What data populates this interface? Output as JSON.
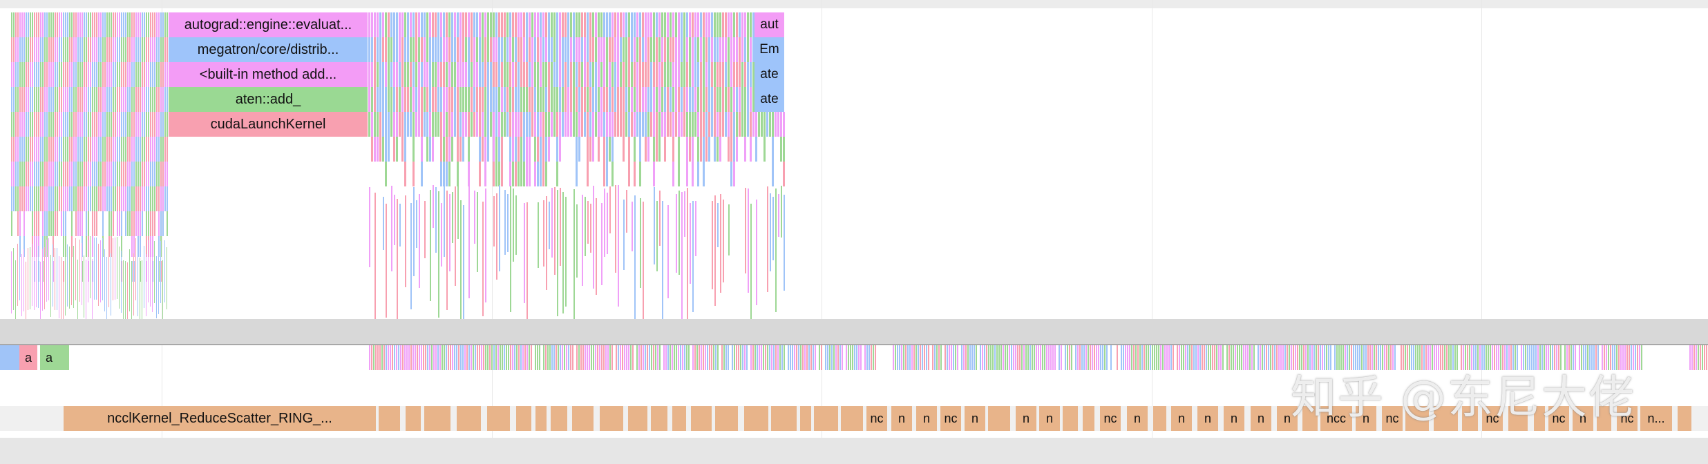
{
  "cpu_stack": {
    "left_labels": [
      "autograd::engine::evaluat...",
      "megatron/core/distrib...",
      "<built-in method add...",
      "aten::add_",
      "cudaLaunchKernel"
    ],
    "right_labels": [
      "aut",
      "Em",
      "ate",
      "ate"
    ]
  },
  "cuda_row": {
    "labels": [
      "a",
      "a"
    ]
  },
  "nccl_row": {
    "main_label": "ncclKernel_ReduceScatter_RING_...",
    "short_labels": [
      "nc",
      "n",
      "n",
      "nc",
      "n",
      "n",
      "n",
      "nc",
      "n",
      "n",
      "n",
      "n",
      "n",
      "n",
      "ncc",
      "n",
      "nc",
      "nc",
      "nc",
      "n",
      "nc",
      "n..."
    ]
  },
  "watermark": "知乎 @东尼大佬",
  "colors": {
    "pink": "#f0a0f8",
    "blue": "#a0c4f8",
    "green": "#9ed895",
    "rose": "#f8a0b0",
    "kernel": "#e8b48a",
    "separator": "#d8d8d8"
  }
}
